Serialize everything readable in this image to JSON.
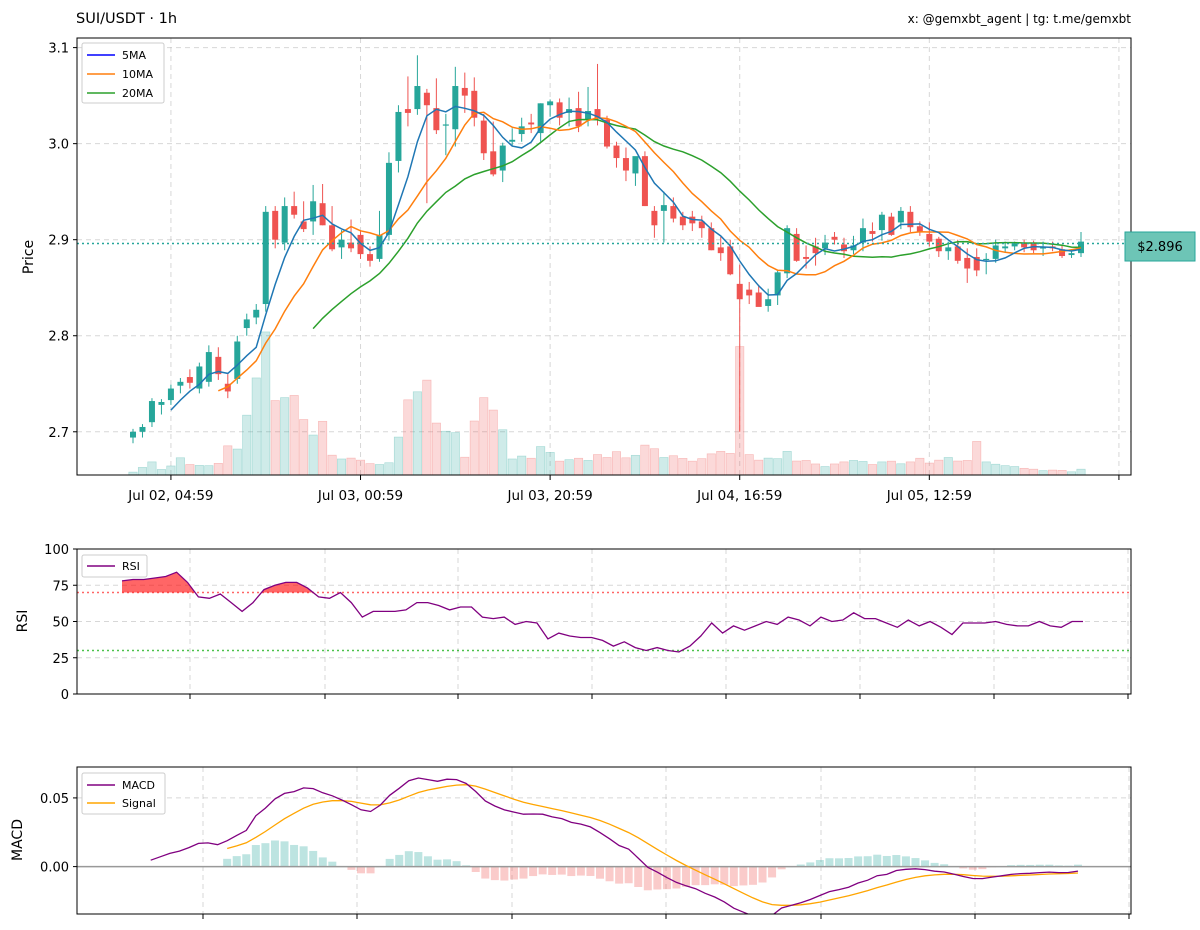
{
  "header": {
    "title": "SUI/USDT · 1h",
    "credit": "x: @gemxbt_agent | tg: t.me/gemxbt"
  },
  "price_tag": "$2.896",
  "colors": {
    "up": "#26a69a",
    "down": "#ef5350",
    "ma5": "#1f77b4",
    "ma10": "#ff7f0e",
    "ma20": "#2ca02c",
    "rsi": "#800080",
    "macd": "#800080",
    "signal": "#ffa500",
    "overbought": "#ff0000",
    "oversold": "#00aa00"
  },
  "chart_data": [
    {
      "type": "candlestick",
      "name": "price",
      "ylabel": "Price",
      "ylim": [
        2.655,
        3.11
      ],
      "yticks": [
        2.7,
        2.8,
        2.9,
        3.0,
        3.1
      ],
      "x_tick_labels": [
        "Jul 02, 04:59",
        "Jul 03, 00:59",
        "Jul 03, 20:59",
        "Jul 04, 16:59",
        "Jul 05, 12:59"
      ],
      "x_tick_index": [
        4,
        24,
        44,
        64,
        84
      ],
      "current_price": 2.896,
      "legend": [
        "5MA",
        "10MA",
        "20MA"
      ],
      "legend_position": "top-left",
      "grid": true,
      "candles": [
        [
          2.694,
          2.703,
          2.688,
          2.7
        ],
        [
          2.7,
          2.708,
          2.694,
          2.705
        ],
        [
          2.71,
          2.735,
          2.705,
          2.732
        ],
        [
          2.728,
          2.734,
          2.718,
          2.731
        ],
        [
          2.733,
          2.749,
          2.728,
          2.745
        ],
        [
          2.748,
          2.756,
          2.74,
          2.752
        ],
        [
          2.757,
          2.765,
          2.745,
          2.751
        ],
        [
          2.745,
          2.772,
          2.74,
          2.768
        ],
        [
          2.752,
          2.79,
          2.747,
          2.783
        ],
        [
          2.778,
          2.788,
          2.754,
          2.76
        ],
        [
          2.75,
          2.76,
          2.735,
          2.742
        ],
        [
          2.755,
          2.8,
          2.75,
          2.794
        ],
        [
          2.808,
          2.823,
          2.8,
          2.817
        ],
        [
          2.819,
          2.833,
          2.812,
          2.827
        ],
        [
          2.833,
          2.935,
          2.825,
          2.929
        ],
        [
          2.93,
          2.935,
          2.891,
          2.9
        ],
        [
          2.897,
          2.944,
          2.889,
          2.935
        ],
        [
          2.935,
          2.95,
          2.922,
          2.926
        ],
        [
          2.919,
          2.94,
          2.908,
          2.911
        ],
        [
          2.919,
          2.957,
          2.905,
          2.94
        ],
        [
          2.938,
          2.958,
          2.915,
          2.915
        ],
        [
          2.915,
          2.935,
          2.888,
          2.89
        ],
        [
          2.892,
          2.91,
          2.88,
          2.9
        ],
        [
          2.897,
          2.921,
          2.887,
          2.891
        ],
        [
          2.905,
          2.91,
          2.88,
          2.885
        ],
        [
          2.885,
          2.893,
          2.872,
          2.878
        ],
        [
          2.88,
          2.93,
          2.877,
          2.905
        ],
        [
          2.905,
          2.991,
          2.899,
          2.98
        ],
        [
          2.982,
          3.04,
          2.97,
          3.033
        ],
        [
          3.036,
          3.07,
          3.018,
          3.032
        ],
        [
          3.036,
          3.092,
          3.03,
          3.06
        ],
        [
          3.053,
          3.057,
          2.938,
          3.04
        ],
        [
          3.037,
          3.068,
          3.01,
          3.014
        ],
        [
          3.019,
          3.031,
          2.988,
          3.02
        ],
        [
          3.015,
          3.08,
          2.997,
          3.06
        ],
        [
          3.058,
          3.074,
          3.032,
          3.05
        ],
        [
          3.055,
          3.069,
          3.018,
          3.027
        ],
        [
          3.024,
          3.031,
          2.983,
          2.99
        ],
        [
          2.992,
          3.023,
          2.966,
          2.968
        ],
        [
          2.972,
          3.001,
          2.96,
          2.998
        ],
        [
          3.002,
          3.016,
          2.997,
          3.004
        ],
        [
          3.01,
          3.027,
          3.002,
          3.018
        ],
        [
          3.022,
          3.031,
          3.011,
          3.02
        ],
        [
          3.011,
          3.042,
          3.002,
          3.042
        ],
        [
          3.04,
          3.046,
          3.028,
          3.044
        ],
        [
          3.043,
          3.047,
          3.019,
          3.027
        ],
        [
          3.032,
          3.048,
          3.018,
          3.036
        ],
        [
          3.037,
          3.054,
          3.012,
          3.018
        ],
        [
          3.025,
          3.059,
          3.018,
          3.034
        ],
        [
          3.036,
          3.083,
          3.019,
          3.026
        ],
        [
          3.025,
          3.029,
          2.995,
          2.997
        ],
        [
          2.998,
          3.002,
          2.975,
          2.985
        ],
        [
          2.985,
          2.996,
          2.961,
          2.972
        ],
        [
          2.969,
          2.983,
          2.956,
          2.987
        ],
        [
          2.987,
          2.992,
          2.935,
          2.935
        ],
        [
          2.93,
          2.935,
          2.902,
          2.915
        ],
        [
          2.93,
          2.95,
          2.897,
          2.936
        ],
        [
          2.935,
          2.944,
          2.918,
          2.922
        ],
        [
          2.924,
          2.929,
          2.91,
          2.915
        ],
        [
          2.924,
          2.93,
          2.909,
          2.917
        ],
        [
          2.919,
          2.925,
          2.902,
          2.912
        ],
        [
          2.912,
          2.918,
          2.889,
          2.889
        ],
        [
          2.892,
          2.903,
          2.878,
          2.886
        ],
        [
          2.893,
          2.9,
          2.863,
          2.864
        ],
        [
          2.854,
          2.874,
          2.7,
          2.838
        ],
        [
          2.848,
          2.856,
          2.833,
          2.842
        ],
        [
          2.845,
          2.853,
          2.831,
          2.83
        ],
        [
          2.831,
          2.849,
          2.825,
          2.838
        ],
        [
          2.842,
          2.868,
          2.832,
          2.866
        ],
        [
          2.865,
          2.915,
          2.86,
          2.912
        ],
        [
          2.906,
          2.912,
          2.877,
          2.878
        ],
        [
          2.882,
          2.894,
          2.87,
          2.88
        ],
        [
          2.893,
          2.902,
          2.873,
          2.886
        ],
        [
          2.891,
          2.905,
          2.884,
          2.897
        ],
        [
          2.903,
          2.908,
          2.895,
          2.9
        ],
        [
          2.895,
          2.902,
          2.881,
          2.888
        ],
        [
          2.889,
          2.904,
          2.885,
          2.894
        ],
        [
          2.897,
          2.922,
          2.888,
          2.912
        ],
        [
          2.909,
          2.918,
          2.898,
          2.906
        ],
        [
          2.91,
          2.929,
          2.899,
          2.926
        ],
        [
          2.924,
          2.928,
          2.904,
          2.905
        ],
        [
          2.918,
          2.934,
          2.911,
          2.93
        ],
        [
          2.929,
          2.935,
          2.908,
          2.913
        ],
        [
          2.914,
          2.919,
          2.904,
          2.908
        ],
        [
          2.906,
          2.918,
          2.893,
          2.898
        ],
        [
          2.901,
          2.903,
          2.882,
          2.888
        ],
        [
          2.888,
          2.898,
          2.879,
          2.892
        ],
        [
          2.893,
          2.9,
          2.875,
          2.878
        ],
        [
          2.881,
          2.891,
          2.855,
          2.87
        ],
        [
          2.882,
          2.891,
          2.862,
          2.868
        ],
        [
          2.879,
          2.886,
          2.864,
          2.88
        ],
        [
          2.88,
          2.9,
          2.876,
          2.894
        ],
        [
          2.891,
          2.898,
          2.887,
          2.893
        ],
        [
          2.893,
          2.898,
          2.889,
          2.896
        ],
        [
          2.896,
          2.9,
          2.887,
          2.892
        ],
        [
          2.896,
          2.899,
          2.886,
          2.889
        ],
        [
          2.891,
          2.898,
          2.883,
          2.892
        ],
        [
          2.893,
          2.898,
          2.888,
          2.891
        ],
        [
          2.89,
          2.895,
          2.881,
          2.883
        ],
        [
          2.884,
          2.888,
          2.881,
          2.886
        ],
        [
          2.886,
          2.908,
          2.882,
          2.898
        ]
      ],
      "volume": [
        20,
        52,
        90,
        38,
        62,
        118,
        72,
        66,
        64,
        80,
        200,
        178,
        410,
        665,
        980,
        510,
        530,
        545,
        380,
        274,
        368,
        136,
        110,
        116,
        102,
        78,
        72,
        84,
        260,
        515,
        570,
        650,
        356,
        300,
        290,
        122,
        370,
        530,
        445,
        310,
        110,
        130,
        115,
        195,
        155,
        95,
        105,
        115,
        100,
        140,
        120,
        160,
        118,
        135,
        205,
        180,
        120,
        132,
        114,
        95,
        112,
        145,
        162,
        148,
        880,
        140,
        102,
        116,
        112,
        162,
        96,
        100,
        76,
        58,
        76,
        90,
        100,
        93,
        72,
        90,
        95,
        77,
        90,
        115,
        82,
        102,
        120,
        96,
        100,
        230,
        90,
        74,
        64,
        58,
        46,
        40,
        30,
        34,
        32,
        22,
        40
      ]
    },
    {
      "type": "line",
      "name": "rsi",
      "ylabel": "RSI",
      "ylim": [
        0,
        100
      ],
      "yticks": [
        0,
        25,
        50,
        75,
        100
      ],
      "overbought": 70,
      "oversold": 30,
      "legend": [
        "RSI"
      ],
      "legend_position": "top-left",
      "values": [
        78,
        79,
        79,
        80,
        81,
        84,
        77,
        67,
        66,
        69,
        63,
        57,
        63,
        72,
        75,
        77,
        77,
        73,
        67,
        66,
        70,
        63,
        53,
        57,
        57,
        57,
        58,
        63,
        63,
        61,
        58,
        60,
        60,
        53,
        52,
        53,
        48,
        50,
        49,
        38,
        42,
        40,
        39,
        39,
        37,
        33,
        36,
        32,
        30,
        32,
        30,
        29,
        33,
        40,
        49,
        42,
        47,
        44,
        47,
        50,
        48,
        53,
        51,
        47,
        53,
        50,
        51,
        56,
        52,
        52,
        49,
        46,
        51,
        47,
        50,
        46,
        41,
        49,
        49,
        49,
        50,
        48,
        47,
        47,
        50,
        47,
        46,
        50,
        50
      ]
    },
    {
      "type": "line",
      "name": "macd",
      "ylabel": "MACD",
      "ylim": [
        -0.0345,
        0.0725
      ],
      "yticks": [
        0.0,
        0.05
      ],
      "ytick_labels": [
        "0.00",
        "0.05"
      ],
      "legend": [
        "MACD",
        "Signal"
      ],
      "legend_position": "top-left"
    }
  ]
}
